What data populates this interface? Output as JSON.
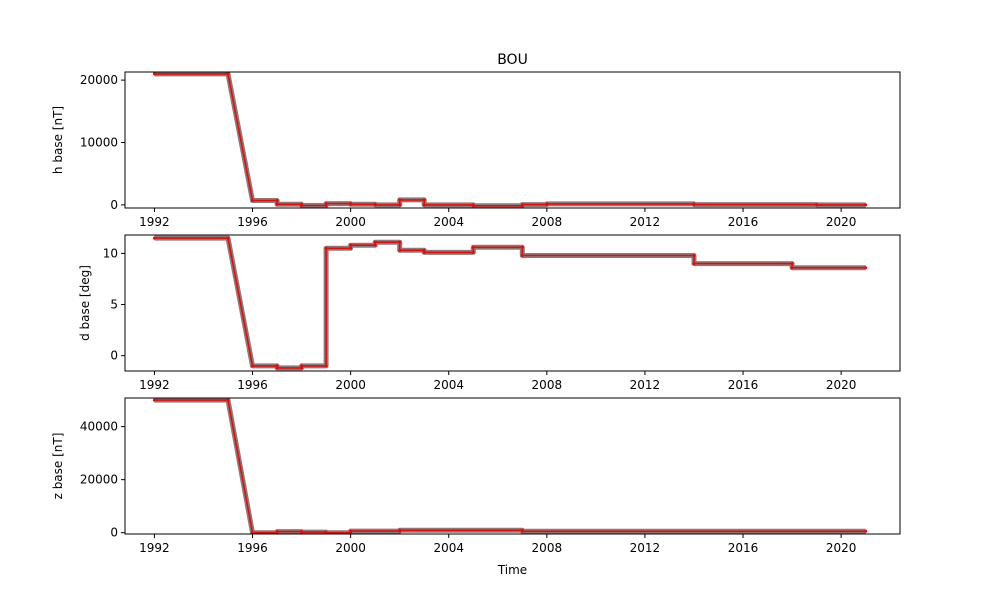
{
  "chart_data": [
    {
      "type": "line",
      "title": "BOU",
      "ylabel": "h base [nT]",
      "xlabel": "",
      "xlim": [
        1990.8,
        2022.4
      ],
      "ylim": [
        -500,
        21300
      ],
      "x_ticks": [
        1992,
        1996,
        2000,
        2004,
        2008,
        2012,
        2016,
        2020
      ],
      "x_tick_labels": [
        "1992",
        "1996",
        "2000",
        "2004",
        "2008",
        "2012",
        "2016",
        "2020"
      ],
      "y_ticks": [
        0,
        10000,
        20000
      ],
      "y_tick_labels": [
        "0",
        "10000",
        "20000"
      ],
      "series": [
        {
          "color": "#ff0000",
          "x": [
            1992,
            1995,
            1996,
            1997,
            1997,
            1998,
            1998,
            1999,
            1999,
            2000,
            2000,
            2001,
            2001,
            2002,
            2002,
            2003,
            2003,
            2005,
            2005,
            2007,
            2007,
            2008,
            2008,
            2014,
            2014,
            2019,
            2019,
            2021
          ],
          "y": [
            21000,
            21000,
            700,
            700,
            100,
            100,
            -100,
            -100,
            200,
            200,
            100,
            100,
            0,
            0,
            800,
            800,
            0,
            0,
            -150,
            -150,
            50,
            50,
            150,
            150,
            50,
            50,
            0,
            0
          ]
        }
      ],
      "background_series_color": "#808080"
    },
    {
      "type": "line",
      "title": "",
      "ylabel": "d base [deg]",
      "xlabel": "",
      "xlim": [
        1990.8,
        2022.4
      ],
      "ylim": [
        -1.5,
        11.8
      ],
      "x_ticks": [
        1992,
        1996,
        2000,
        2004,
        2008,
        2012,
        2016,
        2020
      ],
      "x_tick_labels": [
        "1992",
        "1996",
        "2000",
        "2004",
        "2008",
        "2012",
        "2016",
        "2020"
      ],
      "y_ticks": [
        0,
        5,
        10
      ],
      "y_tick_labels": [
        "0",
        "5",
        "10"
      ],
      "series": [
        {
          "color": "#ff0000",
          "x": [
            1992,
            1995,
            1996,
            1997,
            1997,
            1998,
            1998,
            1999,
            1999,
            2000,
            2000,
            2001,
            2001,
            2002,
            2002,
            2003,
            2003,
            2005,
            2005,
            2007,
            2007,
            2014,
            2014,
            2018,
            2018,
            2021
          ],
          "y": [
            11.5,
            11.5,
            -1.0,
            -1.0,
            -1.2,
            -1.2,
            -1.0,
            -1.0,
            10.5,
            10.5,
            10.8,
            10.8,
            11.1,
            11.1,
            10.3,
            10.3,
            10.1,
            10.1,
            10.6,
            10.6,
            9.8,
            9.8,
            9.0,
            9.0,
            8.6,
            8.6
          ]
        }
      ],
      "background_series_color": "#808080"
    },
    {
      "type": "line",
      "title": "",
      "ylabel": "z base [nT]",
      "xlabel": "Time",
      "xlim": [
        1990.8,
        2022.4
      ],
      "ylim": [
        -500,
        50800
      ],
      "x_ticks": [
        1992,
        1996,
        2000,
        2004,
        2008,
        2012,
        2016,
        2020
      ],
      "x_tick_labels": [
        "1992",
        "1996",
        "2000",
        "2004",
        "2008",
        "2012",
        "2016",
        "2020"
      ],
      "y_ticks": [
        0,
        20000,
        40000
      ],
      "y_tick_labels": [
        "0",
        "20000",
        "40000"
      ],
      "series": [
        {
          "color": "#ff0000",
          "x": [
            1992,
            1995,
            1996,
            1997,
            1997,
            1998,
            1998,
            1999,
            1999,
            2000,
            2000,
            2002,
            2002,
            2007,
            2007,
            2021
          ],
          "y": [
            50000,
            50000,
            0,
            0,
            400,
            400,
            200,
            200,
            0,
            0,
            600,
            600,
            900,
            900,
            500,
            500
          ]
        }
      ],
      "background_series_color": "#808080"
    }
  ]
}
